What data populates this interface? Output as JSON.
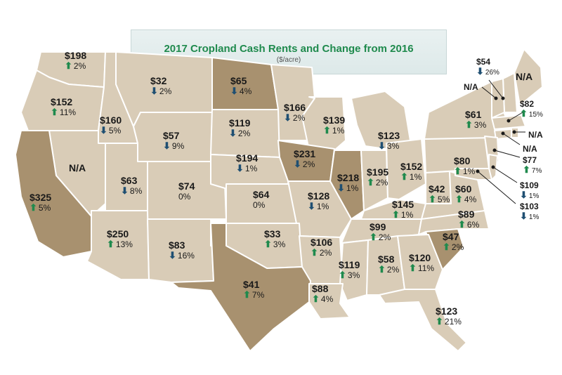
{
  "title": "2017 Cropland Cash Rents and Change from 2016",
  "subtitle": "($/acre)",
  "colors": {
    "state_fill": "#d9ccb7",
    "highlight_fill": "#a8916f",
    "border": "#ffffff",
    "up_arrow": "#1f8a4d",
    "down_arrow": "#1f4f72"
  },
  "states": [
    {
      "id": "WA",
      "value": "$198",
      "change": "2%",
      "dir": "up"
    },
    {
      "id": "OR",
      "value": "$152",
      "change": "11%",
      "dir": "up"
    },
    {
      "id": "ID",
      "value": "$160",
      "change": "5%",
      "dir": "down"
    },
    {
      "id": "MT",
      "value": "$32",
      "change": "2%",
      "dir": "down"
    },
    {
      "id": "ND",
      "value": "$65",
      "change": "4%",
      "dir": "down"
    },
    {
      "id": "MN",
      "value": "$166",
      "change": "2%",
      "dir": "down"
    },
    {
      "id": "WI",
      "value": "$139",
      "change": "1%",
      "dir": "up"
    },
    {
      "id": "MI",
      "value": "$123",
      "change": "3%",
      "dir": "down"
    },
    {
      "id": "NV",
      "value": "N/A",
      "change": "",
      "dir": ""
    },
    {
      "id": "WY",
      "value": "$57",
      "change": "9%",
      "dir": "down"
    },
    {
      "id": "SD",
      "value": "$119",
      "change": "2%",
      "dir": "down"
    },
    {
      "id": "IA",
      "value": "$231",
      "change": "2%",
      "dir": "down"
    },
    {
      "id": "IL",
      "value": "$218",
      "change": "1%",
      "dir": "down"
    },
    {
      "id": "IN",
      "value": "$195",
      "change": "2%",
      "dir": "up"
    },
    {
      "id": "OH",
      "value": "$152",
      "change": "1%",
      "dir": "up"
    },
    {
      "id": "PA",
      "value": "$80",
      "change": "1%",
      "dir": "up"
    },
    {
      "id": "NY",
      "value": "$61",
      "change": "3%",
      "dir": "up"
    },
    {
      "id": "CA",
      "value": "$325",
      "change": "5%",
      "dir": "up"
    },
    {
      "id": "UT",
      "value": "$63",
      "change": "8%",
      "dir": "down"
    },
    {
      "id": "CO",
      "value": "$74",
      "change": "0%",
      "dir": ""
    },
    {
      "id": "NE",
      "value": "$194",
      "change": "1%",
      "dir": "down"
    },
    {
      "id": "KS",
      "value": "$64",
      "change": "0%",
      "dir": ""
    },
    {
      "id": "MO",
      "value": "$128",
      "change": "1%",
      "dir": "down"
    },
    {
      "id": "KY",
      "value": "$145",
      "change": "1%",
      "dir": "up"
    },
    {
      "id": "WV",
      "value": "$42",
      "change": "5%",
      "dir": "up"
    },
    {
      "id": "VA",
      "value": "$60",
      "change": "4%",
      "dir": "up"
    },
    {
      "id": "AZ",
      "value": "$250",
      "change": "13%",
      "dir": "up"
    },
    {
      "id": "NM",
      "value": "$83",
      "change": "16%",
      "dir": "down"
    },
    {
      "id": "OK",
      "value": "$33",
      "change": "3%",
      "dir": "up"
    },
    {
      "id": "AR",
      "value": "$106",
      "change": "2%",
      "dir": "up"
    },
    {
      "id": "TN",
      "value": "$99",
      "change": "2%",
      "dir": "up"
    },
    {
      "id": "NC",
      "value": "$89",
      "change": "6%",
      "dir": "up"
    },
    {
      "id": "SC",
      "value": "$47",
      "change": "2%",
      "dir": "up"
    },
    {
      "id": "TX",
      "value": "$41",
      "change": "7%",
      "dir": "up"
    },
    {
      "id": "MS",
      "value": "$119",
      "change": "3%",
      "dir": "up"
    },
    {
      "id": "AL",
      "value": "$58",
      "change": "2%",
      "dir": "up"
    },
    {
      "id": "GA",
      "value": "$120",
      "change": "11%",
      "dir": "up"
    },
    {
      "id": "LA",
      "value": "$88",
      "change": "4%",
      "dir": "up"
    },
    {
      "id": "FL",
      "value": "$123",
      "change": "21%",
      "dir": "up"
    },
    {
      "id": "ME",
      "value": "N/A",
      "change": "",
      "dir": ""
    },
    {
      "id": "NH",
      "value": "$54",
      "change": "26%",
      "dir": "down"
    },
    {
      "id": "VT",
      "value": "N/A",
      "change": "",
      "dir": ""
    },
    {
      "id": "MA",
      "value": "$82",
      "change": "15%",
      "dir": "up"
    },
    {
      "id": "RI",
      "value": "N/A",
      "change": "",
      "dir": ""
    },
    {
      "id": "CT",
      "value": "N/A",
      "change": "",
      "dir": ""
    },
    {
      "id": "NJ",
      "value": "$77",
      "change": "7%",
      "dir": "up"
    },
    {
      "id": "DE",
      "value": "$109",
      "change": "1%",
      "dir": "down"
    },
    {
      "id": "MD",
      "value": "$103",
      "change": "1%",
      "dir": "down"
    }
  ]
}
